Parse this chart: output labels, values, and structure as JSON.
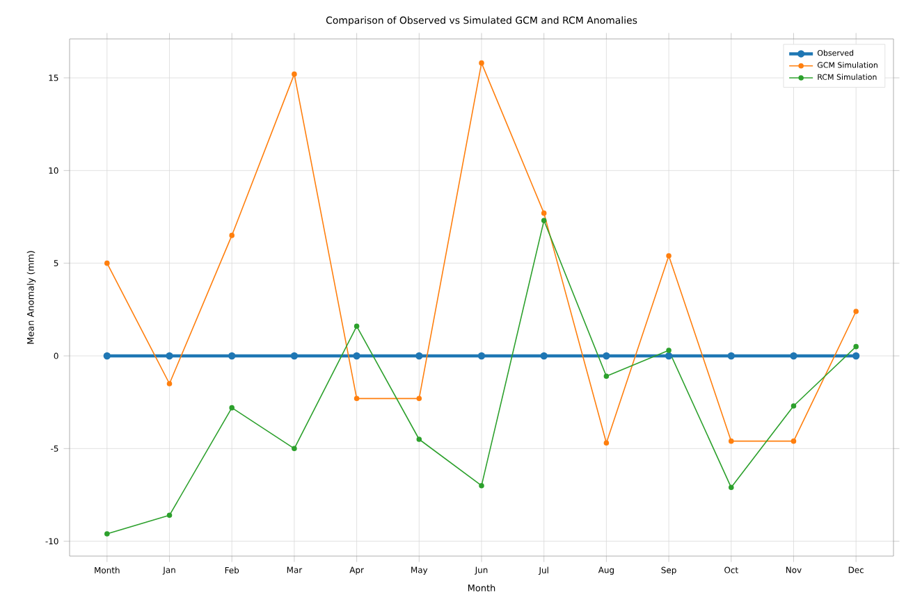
{
  "chart_data": {
    "type": "line",
    "title": "Comparison of Observed vs Simulated GCM and RCM Anomalies",
    "xlabel": "Month",
    "ylabel": "Mean Anomaly (mm)",
    "categories": [
      "Month",
      "Jan",
      "Feb",
      "Mar",
      "Apr",
      "May",
      "Jun",
      "Jul",
      "Aug",
      "Sep",
      "Oct",
      "Nov",
      "Dec"
    ],
    "series": [
      {
        "name": "Observed",
        "color": "#1f77b4",
        "values": [
          0,
          0,
          0,
          0,
          0,
          0,
          0,
          0,
          0,
          0,
          0,
          0,
          0
        ]
      },
      {
        "name": "GCM Simulation",
        "color": "#ff7f0e",
        "values": [
          5.0,
          -1.5,
          6.5,
          15.2,
          -2.3,
          -2.3,
          15.8,
          7.7,
          -4.7,
          5.4,
          -4.6,
          -4.6,
          2.4
        ]
      },
      {
        "name": "RCM Simulation",
        "color": "#2ca02c",
        "values": [
          -9.6,
          -8.6,
          -2.8,
          -5.0,
          1.6,
          -4.5,
          -7.0,
          7.3,
          -1.1,
          0.3,
          -7.1,
          -2.7,
          0.5
        ]
      }
    ],
    "ylim": [
      -10.8,
      17.1
    ],
    "yticks": [
      -10,
      -5,
      0,
      5,
      10,
      15
    ],
    "grid": true,
    "legend": "top right",
    "marker": "circle",
    "line_style": "solid"
  }
}
